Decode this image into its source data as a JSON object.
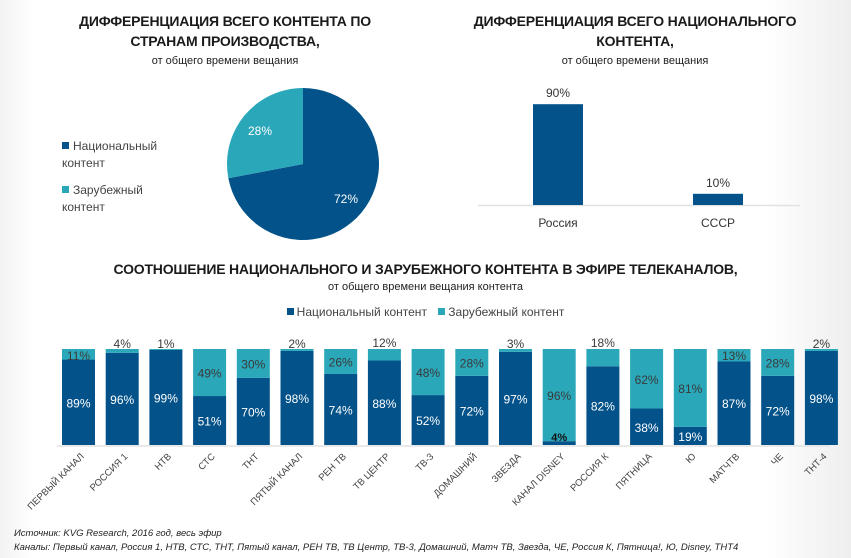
{
  "colors": {
    "national": "#03528a",
    "foreign": "#2aa7b9",
    "axis": "#e2e2e2",
    "label_dark": "#3a3a3a",
    "label_light": "#ffffff"
  },
  "pie_chart": {
    "title_line1": "ДИФФЕРЕНЦИАЦИЯ ВСЕГО КОНТЕНТА ПО",
    "title_line2": "СТРАНАМ ПРОИЗВОДСТВА,",
    "subtitle": "от общего времени вещания",
    "legend": [
      {
        "line1": "Национальный",
        "line2": "контент"
      },
      {
        "line1": "Зарубежный",
        "line2": "контент"
      }
    ]
  },
  "country_chart": {
    "title_line1": "ДИФФЕРЕНЦИАЦИЯ ВСЕГО НАЦИОНАЛЬНОГО",
    "title_line2": "КОНТЕНТА,",
    "subtitle": "от общего времени вещания"
  },
  "channels_chart": {
    "title": "СООТНОШЕНИЕ НАЦИОНАЛЬНОГО И ЗАРУБЕЖНОГО КОНТЕНТА В ЭФИРЕ ТЕЛЕКАНАЛОВ,",
    "subtitle": "от общего времени вещания контента",
    "legend": [
      "Национальный контент",
      "Зарубежный контент"
    ]
  },
  "footer": {
    "source": "Источник: KVG Research, 2016 год, весь эфир",
    "channels": "Каналы: Первый канал, Россия 1, НТВ, СТС, ТНТ, Пятый канал, РЕН ТВ, ТВ Центр, ТВ-3, Домашний, Матч ТВ, Звезда, ЧЕ, Россия К, Пятница!, Ю, Disney, ТНТ4"
  },
  "chart_data": [
    {
      "type": "pie",
      "title": "ДИФФЕРЕНЦИАЦИЯ ВСЕГО КОНТЕНТА ПО СТРАНАМ ПРОИЗВОДСТВА, от общего времени вещания",
      "categories": [
        "Национальный контент",
        "Зарубежный контент"
      ],
      "values": [
        72,
        28
      ],
      "labels": [
        "72%",
        "28%"
      ],
      "legend": "left"
    },
    {
      "type": "bar",
      "title": "ДИФФЕРЕНЦИАЦИЯ ВСЕГО НАЦИОНАЛЬНОГО КОНТЕНТА, от общего времени вещания",
      "categories": [
        "Россия",
        "СССР"
      ],
      "values": [
        90,
        10
      ],
      "labels": [
        "90%",
        "10%"
      ],
      "ylim": [
        0,
        100
      ]
    },
    {
      "type": "bar",
      "stacked": true,
      "title": "СООТНОШЕНИЕ НАЦИОНАЛЬНОГО И ЗАРУБЕЖНОГО КОНТЕНТА В ЭФИРЕ ТЕЛЕКАНАЛОВ, от общего времени вещания контента",
      "categories": [
        "ПЕРВЫЙ КАНАЛ",
        "РОССИЯ 1",
        "НТВ",
        "СТС",
        "ТНТ",
        "ПЯТЫЙ КАНАЛ",
        "РЕН ТВ",
        "ТВ ЦЕНТР",
        "ТВ-3",
        "ДОМАШНИЙ",
        "ЗВЕЗДА",
        "КАНАЛ DISNEY",
        "РОССИЯ К",
        "ПЯТНИЦА",
        "Ю",
        "МАТЧТВ",
        "ЧЕ",
        "ТНТ-4"
      ],
      "series": [
        {
          "name": "Национальный контент",
          "values": [
            89,
            96,
            99,
            51,
            70,
            98,
            74,
            88,
            52,
            72,
            97,
            4,
            82,
            38,
            19,
            87,
            72,
            98
          ]
        },
        {
          "name": "Зарубежный контент",
          "values": [
            11,
            4,
            1,
            49,
            30,
            2,
            26,
            12,
            48,
            28,
            3,
            96,
            18,
            62,
            81,
            13,
            28,
            2
          ]
        }
      ],
      "ylim": [
        0,
        100
      ],
      "legend": "top"
    }
  ]
}
